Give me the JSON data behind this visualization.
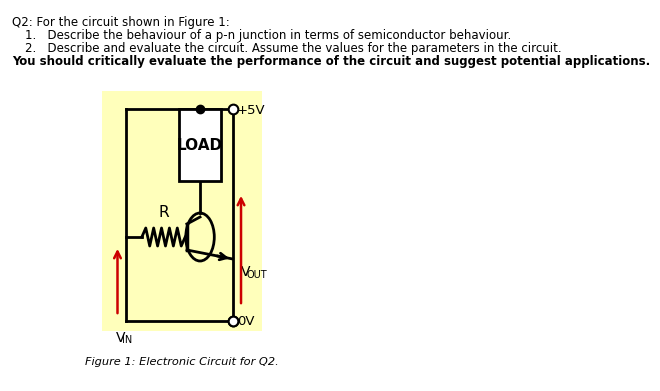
{
  "title_lines": [
    {
      "text": "Q2: For the circuit shown in Figure 1:",
      "indent": 0,
      "bold": false,
      "size": 8.5
    },
    {
      "text": "1.   Describe the behaviour of a p-n junction in terms of semiconductor behaviour.",
      "indent": 22,
      "bold": false,
      "size": 8.5
    },
    {
      "text": "2.   Describe and evaluate the circuit. Assume the values for the parameters in the circuit.",
      "indent": 22,
      "bold": false,
      "size": 8.5
    },
    {
      "text": "You should critically evaluate the performance of the circuit and suggest potential applications.",
      "indent": 0,
      "bold": true,
      "size": 8.5
    }
  ],
  "caption": "Figure 1: Electronic Circuit for Q2.",
  "bg_color": "#ffffff",
  "circuit_bg": "#ffffbb",
  "line_color": "#000000",
  "arrow_color": "#cc0000",
  "label_5v": "+5V",
  "label_0v": "0V",
  "label_load": "LOAD",
  "label_r": "R",
  "vin_main": "V",
  "vin_sub": "IN",
  "vout_main": "V",
  "vout_sub": "OUT"
}
